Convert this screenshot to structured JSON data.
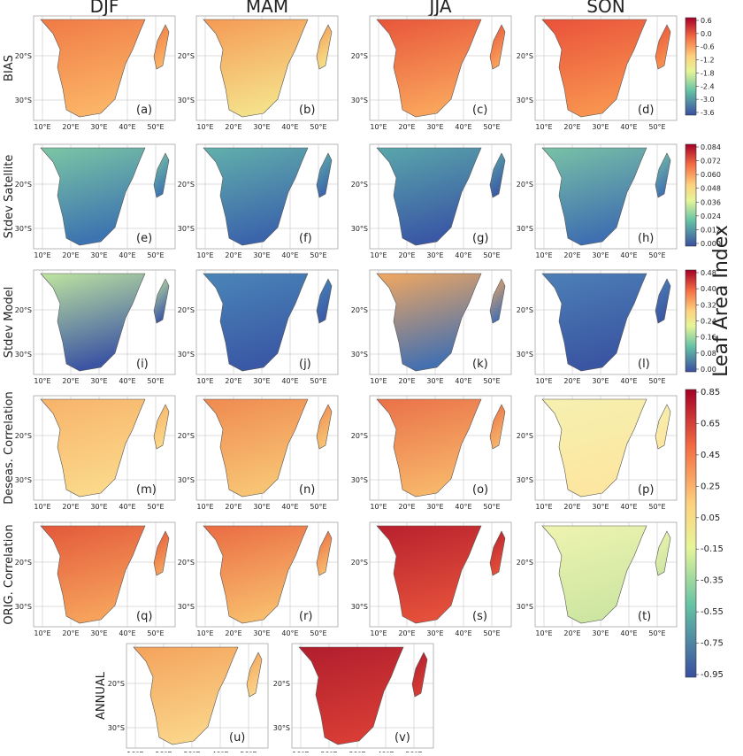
{
  "column_titles": [
    "DJF",
    "MAM",
    "JJA",
    "SON"
  ],
  "row_titles": [
    "BIAS",
    "Stdev Satellite",
    "Stdev Model",
    "Deseas. Correlation",
    "ORIG. Correlation",
    "ANNUAL"
  ],
  "panel_labels": [
    "(a)",
    "(b)",
    "(c)",
    "(d)",
    "(e)",
    "(f)",
    "(g)",
    "(h)",
    "(i)",
    "(j)",
    "(k)",
    "(l)",
    "(m)",
    "(n)",
    "(o)",
    "(p)",
    "(q)",
    "(r)",
    "(s)",
    "(t)",
    "(u)",
    "(v)"
  ],
  "lat_labels": [
    "20°S",
    "30°S"
  ],
  "lon_labels": [
    "10°E",
    "20°E",
    "30°E",
    "40°E",
    "50°E"
  ],
  "colorbars": [
    {
      "ticks": [
        "0.6",
        "0.0",
        "-0.6",
        "-1.2",
        "-1.8",
        "-2.4",
        "-3.0",
        "-3.6"
      ]
    },
    {
      "ticks": [
        "0.084",
        "0.072",
        "0.060",
        "0.048",
        "0.036",
        "0.024",
        "0.012",
        "0.000"
      ]
    },
    {
      "ticks": [
        "0.48",
        "0.40",
        "0.32",
        "0.24",
        "0.16",
        "0.08",
        "0.00"
      ]
    },
    {
      "ticks": [
        "0.85",
        "0.65",
        "0.45",
        "0.25",
        "0.05",
        "-0.15",
        "-0.35",
        "-0.55",
        "-0.75",
        "-0.95"
      ]
    }
  ],
  "side_label": "Leaf Area Index"
}
